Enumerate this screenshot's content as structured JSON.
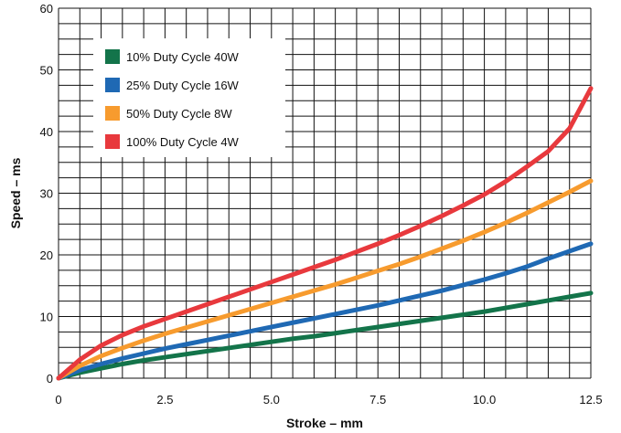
{
  "chart_data": {
    "type": "line",
    "title": "",
    "xlabel": "Stroke – mm",
    "ylabel": "Speed – ms",
    "xlim": [
      0,
      12.5
    ],
    "ylim": [
      0,
      60
    ],
    "x_ticks": [
      0,
      2.5,
      5.0,
      7.5,
      10.0,
      12.5
    ],
    "x_tick_labels": [
      "0",
      "2.5",
      "5.0",
      "7.5",
      "10.0",
      "12.5"
    ],
    "y_ticks": [
      0,
      10,
      20,
      30,
      40,
      50,
      60
    ],
    "y_tick_labels": [
      "0",
      "10",
      "20",
      "30",
      "40",
      "50",
      "60"
    ],
    "grid": true,
    "grid_step_x": 0.5,
    "grid_step_y": 2.5,
    "legend_position": "top-left",
    "x": [
      0,
      0.5,
      1,
      1.5,
      2,
      2.5,
      3,
      3.5,
      4,
      4.5,
      5,
      5.5,
      6,
      6.5,
      7,
      7.5,
      8,
      8.5,
      9,
      9.5,
      10,
      10.5,
      11,
      11.5,
      12,
      12.5
    ],
    "series": [
      {
        "name": "10% Duty Cycle 40W",
        "color": "#13744a",
        "values": [
          0,
          0.9,
          1.6,
          2.3,
          2.9,
          3.4,
          3.9,
          4.4,
          4.9,
          5.4,
          5.9,
          6.4,
          6.8,
          7.3,
          7.8,
          8.3,
          8.8,
          9.3,
          9.8,
          10.3,
          10.8,
          11.4,
          12.0,
          12.6,
          13.2,
          13.8
        ]
      },
      {
        "name": "25% Duty Cycle 16W",
        "color": "#1f69b4",
        "values": [
          0,
          1.3,
          2.3,
          3.2,
          4.0,
          4.8,
          5.5,
          6.2,
          6.9,
          7.6,
          8.3,
          9.0,
          9.7,
          10.4,
          11.1,
          11.8,
          12.6,
          13.4,
          14.2,
          15.1,
          16.0,
          17.0,
          18.1,
          19.4,
          20.6,
          21.8
        ]
      },
      {
        "name": "50% Duty Cycle 8W",
        "color": "#f79b2e",
        "values": [
          0,
          2.0,
          3.6,
          4.9,
          6.1,
          7.2,
          8.2,
          9.2,
          10.2,
          11.2,
          12.2,
          13.2,
          14.2,
          15.2,
          16.3,
          17.4,
          18.5,
          19.7,
          21.0,
          22.3,
          23.7,
          25.2,
          26.8,
          28.5,
          30.2,
          32.0
        ]
      },
      {
        "name": "100% Duty Cycle 4W",
        "color": "#e8393d",
        "values": [
          0,
          3.0,
          5.3,
          7.0,
          8.4,
          9.6,
          10.8,
          12.0,
          13.2,
          14.4,
          15.6,
          16.8,
          18.0,
          19.2,
          20.5,
          21.8,
          23.2,
          24.7,
          26.3,
          28.0,
          29.8,
          31.9,
          34.3,
          36.8,
          40.5,
          47.0
        ]
      }
    ]
  }
}
